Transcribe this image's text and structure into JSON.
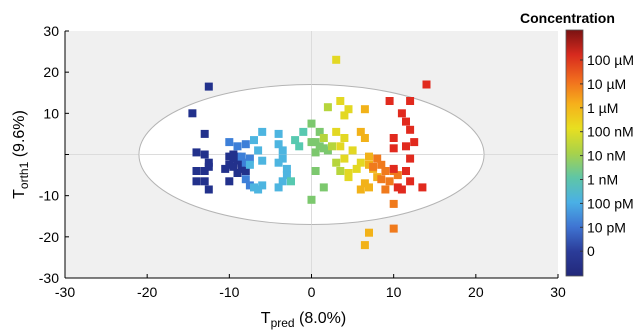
{
  "chart_data": {
    "type": "scatter",
    "title": "",
    "xlabel": {
      "main": "T",
      "sub": "pred",
      "suffix": " (8.0%)"
    },
    "ylabel": {
      "main": "T",
      "sub": "orth1",
      "suffix": " (9.6%)"
    },
    "xlim": [
      -30,
      30
    ],
    "ylim": [
      -30,
      30
    ],
    "xticks": [
      "-30",
      "-20",
      "-10",
      "0",
      "10",
      "20",
      "30"
    ],
    "yticks": [
      "30",
      "20",
      "10",
      "",
      "-10",
      "-20",
      "-30"
    ],
    "grid": false,
    "ellipse": {
      "cx": 0,
      "cy": 0,
      "rx": 21,
      "ry": 17
    },
    "colorbar": {
      "title": "Concentration",
      "labels": [
        "100 µM",
        "10 µM",
        "1 µM",
        "100 nM",
        "10 nM",
        "1 nM",
        "100 pM",
        "10 pM",
        "0"
      ]
    },
    "series": [
      {
        "color": "#22318c",
        "points": [
          [
            -12.5,
            16.5
          ],
          [
            -14.5,
            10
          ],
          [
            -13,
            5
          ],
          [
            -14,
            0.5
          ],
          [
            -13,
            0
          ],
          [
            -12.5,
            -2
          ],
          [
            -14,
            -4
          ],
          [
            -13,
            -4
          ],
          [
            -12.5,
            -3
          ],
          [
            -14,
            -6.5
          ],
          [
            -13,
            -6.5
          ],
          [
            -12.5,
            -8.5
          ],
          [
            -10,
            -0.5
          ],
          [
            -9.5,
            -1
          ],
          [
            -9,
            -0.5
          ],
          [
            -8.5,
            -2
          ],
          [
            -10,
            -2.5
          ],
          [
            -9.5,
            -3
          ],
          [
            -9,
            -1.5
          ],
          [
            -8.5,
            -3.5
          ],
          [
            -10.5,
            -3.5
          ],
          [
            -9,
            -4.5
          ],
          [
            -8,
            -4
          ],
          [
            -10,
            -6.5
          ],
          [
            -9.5,
            0
          ]
        ]
      },
      {
        "color": "#3d7fd8",
        "points": [
          [
            -10,
            3
          ],
          [
            -9,
            2
          ],
          [
            -8,
            2.5
          ],
          [
            -8.5,
            -0.5
          ],
          [
            -8,
            -2
          ],
          [
            -7.5,
            -1
          ],
          [
            -8,
            -6
          ],
          [
            -7.5,
            -7.5
          ]
        ]
      },
      {
        "color": "#4db5e0",
        "points": [
          [
            -6,
            5.5
          ],
          [
            -7,
            3.5
          ],
          [
            -6.5,
            1
          ],
          [
            -6,
            -1.5
          ],
          [
            -7.5,
            -2.5
          ],
          [
            -7,
            -8
          ],
          [
            -6,
            -7.5
          ],
          [
            -6.5,
            -8.5
          ],
          [
            -4,
            5
          ],
          [
            -4,
            2.5
          ],
          [
            -3.5,
            1
          ],
          [
            -3.5,
            -1
          ],
          [
            -4,
            -2
          ],
          [
            -3,
            -3.5
          ],
          [
            -3,
            -5
          ],
          [
            -3.5,
            -6.5
          ],
          [
            -4,
            -8
          ]
        ]
      },
      {
        "color": "#57c9b0",
        "points": [
          [
            -1,
            5.5
          ],
          [
            -2,
            3.5
          ],
          [
            -1.5,
            2
          ],
          [
            -2.5,
            -6.5
          ]
        ]
      },
      {
        "color": "#7cc86e",
        "points": [
          [
            0,
            7.5
          ],
          [
            1,
            5.5
          ],
          [
            0.5,
            3
          ],
          [
            1,
            2
          ],
          [
            0,
            3
          ],
          [
            0.5,
            0.5
          ],
          [
            1.5,
            1.5
          ],
          [
            2,
            1
          ],
          [
            0.5,
            -4
          ],
          [
            0,
            -11
          ],
          [
            1.5,
            -8
          ]
        ]
      },
      {
        "color": "#b6d53c",
        "points": [
          [
            2,
            11.5
          ],
          [
            1.5,
            4
          ],
          [
            2.5,
            2
          ],
          [
            3,
            -2
          ],
          [
            3.5,
            -4
          ]
        ]
      },
      {
        "color": "#e3d823",
        "points": [
          [
            3,
            23
          ],
          [
            3.5,
            13
          ],
          [
            4,
            9.5
          ],
          [
            4.5,
            11
          ],
          [
            3,
            5.5
          ],
          [
            4,
            4
          ],
          [
            3.5,
            2
          ],
          [
            5,
            1
          ],
          [
            4,
            -1
          ],
          [
            5.5,
            -3.5
          ],
          [
            4.5,
            -4.5
          ],
          [
            4.5,
            -5.5
          ],
          [
            6,
            -2
          ]
        ]
      },
      {
        "color": "#f2b219",
        "points": [
          [
            6.5,
            11
          ],
          [
            6,
            5.5
          ],
          [
            6.5,
            4
          ],
          [
            7,
            -0.5
          ],
          [
            7,
            -2.5
          ],
          [
            7.5,
            -3.5
          ],
          [
            8,
            -5.5
          ],
          [
            6.5,
            -7
          ],
          [
            7,
            -8
          ],
          [
            6,
            -8.5
          ],
          [
            7,
            -19
          ],
          [
            6.5,
            -22
          ]
        ]
      },
      {
        "color": "#f07a1c",
        "points": [
          [
            7.5,
            -3
          ],
          [
            8.5,
            -2.5
          ],
          [
            9,
            -4
          ],
          [
            8.5,
            -6
          ],
          [
            9,
            -8.5
          ],
          [
            10,
            -4
          ],
          [
            10.5,
            -5
          ],
          [
            10,
            -12
          ],
          [
            10,
            -18
          ],
          [
            9.5,
            -6.5
          ],
          [
            8,
            -1
          ]
        ]
      },
      {
        "color": "#e12a1e",
        "points": [
          [
            9.5,
            13
          ],
          [
            10,
            4
          ],
          [
            10,
            1.5
          ],
          [
            11,
            10
          ],
          [
            12,
            13
          ],
          [
            11.5,
            8
          ],
          [
            12,
            6
          ],
          [
            12.5,
            3
          ],
          [
            11.5,
            2
          ],
          [
            12,
            -1
          ],
          [
            11.5,
            -4
          ],
          [
            12,
            -6.5
          ],
          [
            13.5,
            -8
          ],
          [
            11,
            -8.5
          ],
          [
            14,
            17
          ],
          [
            10,
            -3.5
          ],
          [
            10.5,
            -8
          ]
        ]
      }
    ]
  }
}
